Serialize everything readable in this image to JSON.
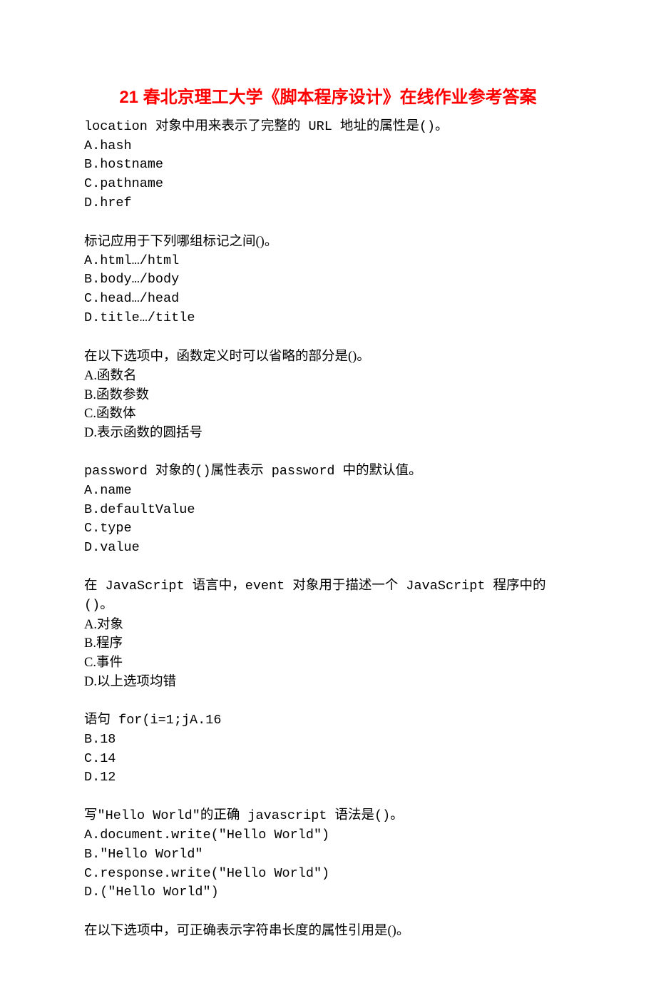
{
  "title": "21 春北京理工大学《脚本程序设计》在线作业参考答案",
  "title_color": "#ff0000",
  "body_color": "#000000",
  "bg_color": "#ffffff",
  "title_fontsize": 24,
  "body_fontsize": 18.5,
  "questions": [
    {
      "stem": "location 对象中用来表示了完整的 URL 地址的属性是()。",
      "options": [
        "A.hash",
        "B.hostname",
        "C.pathname",
        "D.href"
      ]
    },
    {
      "stem": "标记应用于下列哪组标记之间()。",
      "options": [
        "A.html…/html",
        "B.body…/body",
        "C.head…/head",
        "D.title…/title"
      ]
    },
    {
      "stem": "在以下选项中，函数定义时可以省略的部分是()。",
      "options": [
        "A.函数名",
        "B.函数参数",
        "C.函数体",
        "D.表示函数的圆括号"
      ]
    },
    {
      "stem": "password 对象的()属性表示 password 中的默认值。",
      "options": [
        "A.name",
        "B.defaultValue",
        "C.type",
        "D.value"
      ]
    },
    {
      "stem": "在 JavaScript 语言中，event 对象用于描述一个 JavaScript 程序中的()。",
      "options": [
        "A.对象",
        "B.程序",
        "C.事件",
        "D.以上选项均错"
      ]
    },
    {
      "stem": "语句 for(i=1;jA.16",
      "options": [
        "B.18",
        "C.14",
        "D.12"
      ]
    },
    {
      "stem": "写\"Hello World\"的正确 javascript 语法是()。",
      "options": [
        "A.document.write(\"Hello World\")",
        "B.\"Hello World\"",
        "C.response.write(\"Hello World\")",
        "D.(\"Hello World\")"
      ]
    },
    {
      "stem": "在以下选项中，可正确表示字符串长度的属性引用是()。",
      "options": []
    }
  ]
}
